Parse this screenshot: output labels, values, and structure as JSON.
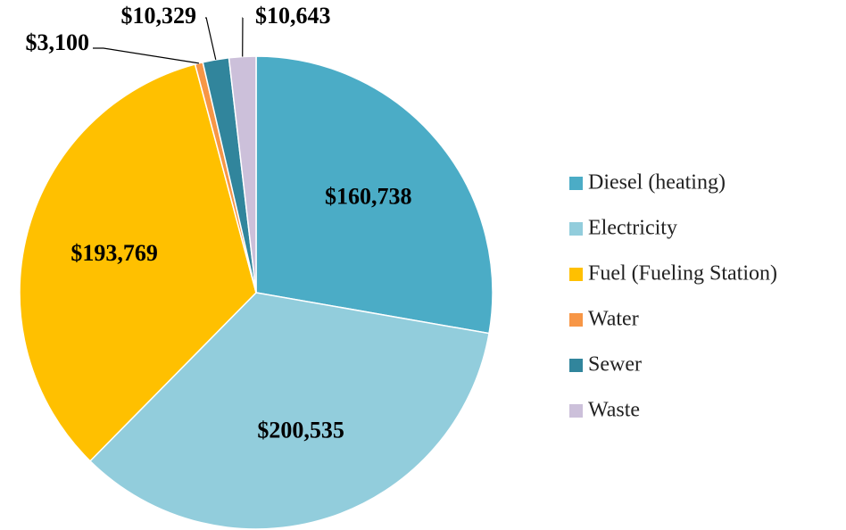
{
  "chart_data": {
    "type": "pie",
    "categories": [
      "Diesel (heating)",
      "Electricity",
      "Fuel (Fueling Station)",
      "Water",
      "Sewer",
      "Waste"
    ],
    "values": [
      160738,
      200535,
      193769,
      3100,
      10329,
      10643
    ],
    "value_labels": [
      "$160,738",
      "$200,535",
      "$193,769",
      "$3,100",
      "$10,329",
      "$10,643"
    ],
    "colors": [
      "#4bacc6",
      "#92cddc",
      "#ffc000",
      "#f79646",
      "#31859c",
      "#ccc0da"
    ],
    "legend": "right"
  }
}
